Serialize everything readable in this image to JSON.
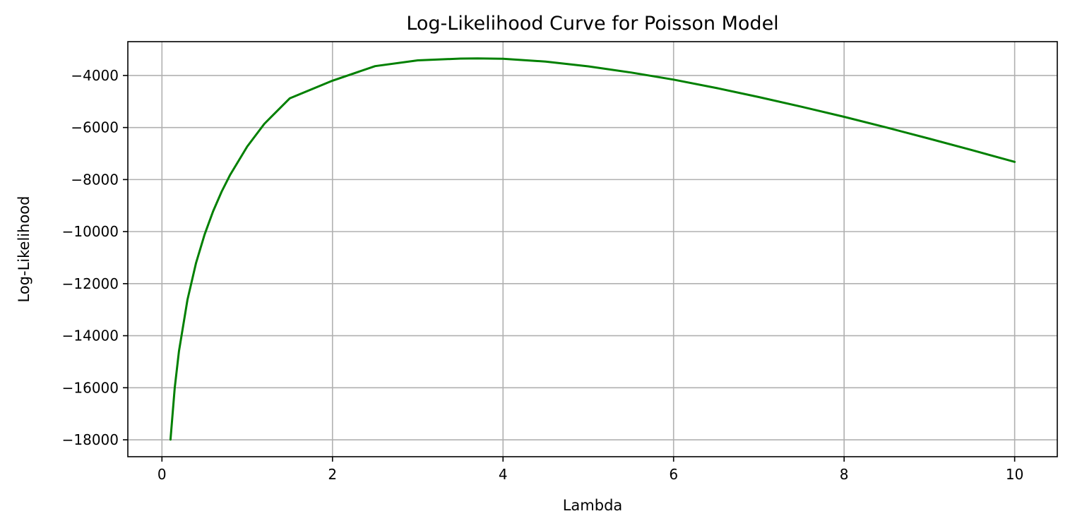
{
  "chart_data": {
    "type": "line",
    "title": "Log-Likelihood Curve for Poisson Model",
    "xlabel": "Lambda",
    "ylabel": "Log-Likelihood",
    "xlim": [
      -0.4,
      10.5
    ],
    "ylim": [
      -18650,
      -2700
    ],
    "grid": true,
    "x_ticks": [
      0,
      2,
      4,
      6,
      8,
      10
    ],
    "x_tick_labels": [
      "0",
      "2",
      "4",
      "6",
      "8",
      "10"
    ],
    "y_ticks": [
      -18000,
      -16000,
      -14000,
      -12000,
      -10000,
      -8000,
      -6000,
      -4000
    ],
    "y_tick_labels": [
      "−18000",
      "−16000",
      "−14000",
      "−12000",
      "−10000",
      "−8000",
      "−6000",
      "−4000"
    ],
    "series": [
      {
        "color": "#008000",
        "x": [
          0.1,
          0.15,
          0.2,
          0.3,
          0.4,
          0.5,
          0.6,
          0.7,
          0.8,
          1.0,
          1.2,
          1.5,
          2.0,
          2.5,
          3.0,
          3.5,
          3.7,
          4.0,
          4.5,
          5.0,
          5.5,
          6.0,
          6.5,
          7.0,
          7.5,
          8.0,
          8.5,
          9.0,
          9.5,
          10.0
        ],
        "y": [
          -17990,
          -16005,
          -14595,
          -12610,
          -11200,
          -10110,
          -9220,
          -8465,
          -7815,
          -6730,
          -5860,
          -4875,
          -4200,
          -3640,
          -3420,
          -3350,
          -3345,
          -3360,
          -3465,
          -3650,
          -3885,
          -4160,
          -4480,
          -4830,
          -5200,
          -5590,
          -6000,
          -6430,
          -6870,
          -7320
        ]
      }
    ]
  }
}
